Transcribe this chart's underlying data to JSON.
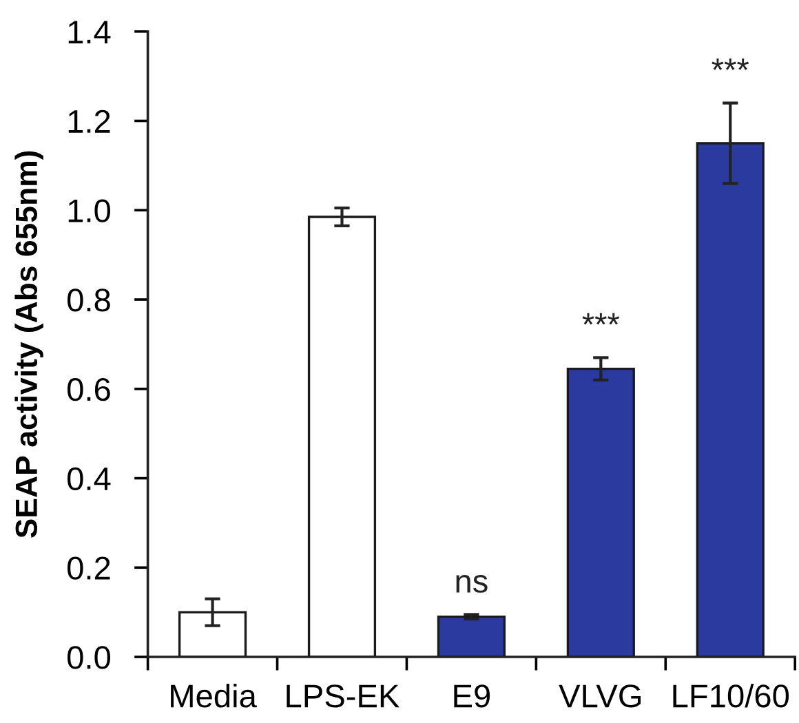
{
  "chart_data": {
    "type": "bar",
    "ylabel": "SEAP activity (Abs 655nm)",
    "categories": [
      "Media",
      "LPS-EK",
      "E9",
      "VLVG",
      "LF10/60"
    ],
    "values": [
      0.1,
      0.985,
      0.09,
      0.645,
      1.15
    ],
    "errors": [
      0.03,
      0.02,
      0.005,
      0.025,
      0.09
    ],
    "colors": [
      "#ffffff",
      "#ffffff",
      "#2b3a9e",
      "#2b3a9e",
      "#2b3a9e"
    ],
    "ylim": [
      0,
      1.4
    ],
    "yticks": [
      {
        "value": 0,
        "label": "0.0"
      },
      0.2,
      0.4,
      0.6,
      0.8,
      {
        "value": 1,
        "label": "1.0"
      },
      1.2,
      1.4
    ],
    "annotations": [
      {
        "text": "ns",
        "x": "E9",
        "y": 0.09
      },
      {
        "text": "***",
        "x": "VLVG",
        "y": 0.645
      },
      {
        "text": "***",
        "x": "LF10/60",
        "y": 1.15
      }
    ]
  }
}
